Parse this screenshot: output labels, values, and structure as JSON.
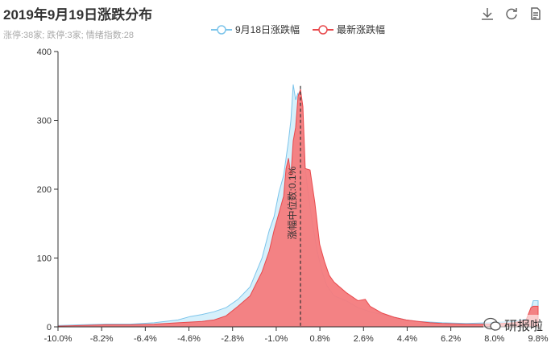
{
  "title": "2019年9月19日涨跌分布",
  "subtitle": "涨停:38家; 跌停:3家; 情绪指数:28",
  "legend": [
    {
      "name": "9月18日涨跌幅",
      "color": "#7cc4ea",
      "fill": "#d6f0fb"
    },
    {
      "name": "最新涨跌幅",
      "color": "#e8494c",
      "fill": "#f47b7d"
    }
  ],
  "toolbox": [
    "download-icon",
    "refresh-icon",
    "data-view-icon"
  ],
  "watermark": "研报啦",
  "median_label": "涨幅中位数:0.1%",
  "chart_data": {
    "type": "area",
    "x_ticks": [
      "-10.0%",
      "-8.2%",
      "-6.4%",
      "-4.6%",
      "-2.8%",
      "-1.0%",
      "0.8%",
      "2.6%",
      "4.4%",
      "6.2%",
      "8.0%",
      "9.8%"
    ],
    "xlim": [
      -10.0,
      10.0
    ],
    "ylim": [
      0,
      400
    ],
    "y_ticks": [
      0,
      100,
      200,
      300,
      400
    ],
    "median": 0.1,
    "series": [
      {
        "name": "9月18日涨跌幅",
        "points": [
          [
            -10.0,
            2
          ],
          [
            -9.0,
            3
          ],
          [
            -8.0,
            4
          ],
          [
            -7.0,
            4
          ],
          [
            -6.0,
            6
          ],
          [
            -5.0,
            10
          ],
          [
            -4.5,
            15
          ],
          [
            -4.0,
            18
          ],
          [
            -3.5,
            22
          ],
          [
            -3.0,
            28
          ],
          [
            -2.5,
            40
          ],
          [
            -2.0,
            58
          ],
          [
            -1.5,
            100
          ],
          [
            -1.2,
            140
          ],
          [
            -1.0,
            160
          ],
          [
            -0.8,
            195
          ],
          [
            -0.6,
            220
          ],
          [
            -0.4,
            270
          ],
          [
            -0.3,
            300
          ],
          [
            -0.2,
            352
          ],
          [
            -0.1,
            330
          ],
          [
            0.0,
            340
          ],
          [
            0.1,
            310
          ],
          [
            0.2,
            260
          ],
          [
            0.4,
            200
          ],
          [
            0.6,
            150
          ],
          [
            0.8,
            110
          ],
          [
            1.0,
            80
          ],
          [
            1.2,
            60
          ],
          [
            1.5,
            45
          ],
          [
            2.0,
            38
          ],
          [
            2.5,
            28
          ],
          [
            3.0,
            22
          ],
          [
            3.5,
            18
          ],
          [
            4.0,
            14
          ],
          [
            4.5,
            10
          ],
          [
            5.0,
            8
          ],
          [
            6.0,
            6
          ],
          [
            7.0,
            5
          ],
          [
            8.0,
            6
          ],
          [
            9.0,
            8
          ],
          [
            9.6,
            12
          ],
          [
            9.8,
            38
          ],
          [
            10.0,
            38
          ]
        ]
      },
      {
        "name": "最新涨跌幅",
        "points": [
          [
            -10.0,
            1
          ],
          [
            -9.0,
            2
          ],
          [
            -8.0,
            3
          ],
          [
            -7.0,
            3
          ],
          [
            -6.0,
            4
          ],
          [
            -5.0,
            6
          ],
          [
            -4.0,
            8
          ],
          [
            -3.5,
            10
          ],
          [
            -3.0,
            16
          ],
          [
            -2.5,
            30
          ],
          [
            -2.0,
            45
          ],
          [
            -1.5,
            80
          ],
          [
            -1.2,
            110
          ],
          [
            -1.0,
            140
          ],
          [
            -0.8,
            165
          ],
          [
            -0.6,
            190
          ],
          [
            -0.5,
            230
          ],
          [
            -0.4,
            245
          ],
          [
            -0.3,
            220
          ],
          [
            -0.2,
            270
          ],
          [
            -0.1,
            290
          ],
          [
            0.0,
            335
          ],
          [
            0.1,
            345
          ],
          [
            0.2,
            320
          ],
          [
            0.3,
            230
          ],
          [
            0.5,
            228
          ],
          [
            0.7,
            180
          ],
          [
            0.9,
            120
          ],
          [
            1.1,
            95
          ],
          [
            1.3,
            75
          ],
          [
            1.5,
            65
          ],
          [
            2.0,
            50
          ],
          [
            2.5,
            38
          ],
          [
            2.8,
            40
          ],
          [
            3.0,
            30
          ],
          [
            3.5,
            20
          ],
          [
            4.0,
            14
          ],
          [
            4.5,
            10
          ],
          [
            5.0,
            8
          ],
          [
            5.5,
            6
          ],
          [
            6.0,
            5
          ],
          [
            7.0,
            4
          ],
          [
            8.0,
            4
          ],
          [
            9.0,
            6
          ],
          [
            9.5,
            10
          ],
          [
            9.7,
            28
          ],
          [
            9.8,
            30
          ],
          [
            10.0,
            30
          ]
        ]
      }
    ]
  }
}
